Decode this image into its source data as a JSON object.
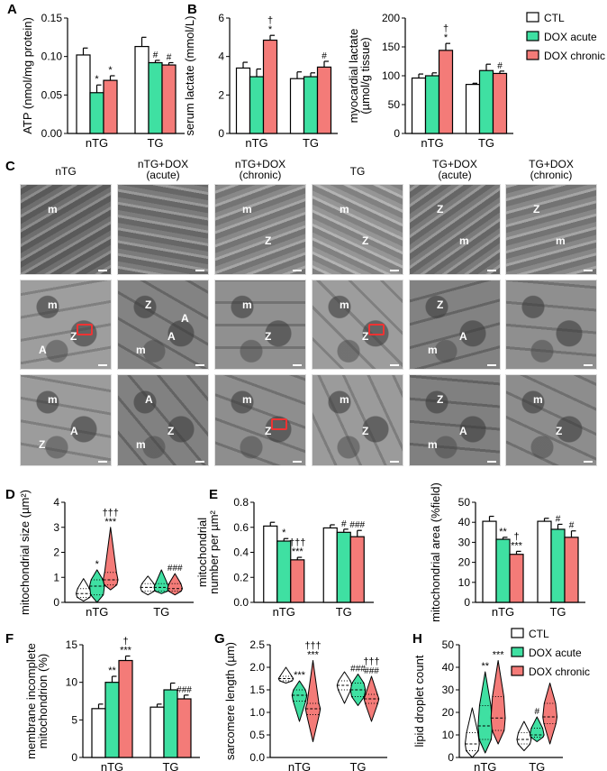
{
  "panel_letters": [
    "A",
    "B",
    "C",
    "D",
    "E",
    "F",
    "G",
    "H"
  ],
  "colors": {
    "CTL": "#ffffff",
    "DOX acute": "#3fe0a2",
    "DOX chronic": "#f47b78"
  },
  "legend": [
    "CTL",
    "DOX acute",
    "DOX chronic"
  ],
  "em": {
    "headers": [
      [
        "nTG",
        ""
      ],
      [
        "nTG+DOX",
        "(acute)"
      ],
      [
        "nTG+DOX",
        "(chronic)"
      ],
      [
        "TG",
        ""
      ],
      [
        "TG+DOX",
        "(acute)"
      ],
      [
        "TG+DOX",
        "(chronic)"
      ]
    ],
    "rows": [
      [
        [
          "m"
        ],
        [],
        [
          "m",
          "Z"
        ],
        [
          "m",
          "Z"
        ],
        [
          "Z",
          "m"
        ],
        [
          "Z",
          "m"
        ]
      ],
      [
        [
          "m",
          "Z",
          "A"
        ],
        [
          "Z",
          "A",
          "m",
          "A"
        ],
        [
          "m",
          "Z"
        ],
        [
          "m",
          "Z"
        ],
        [
          "Z",
          "A",
          "m"
        ],
        []
      ],
      [
        [
          "m",
          "A",
          "Z"
        ],
        [
          "A",
          "Z",
          "m"
        ],
        [
          "m",
          "Z"
        ],
        [
          "m",
          "Z"
        ],
        [
          "Z",
          "A",
          "m"
        ],
        [
          "m",
          "Z"
        ]
      ]
    ]
  },
  "chart_data": [
    {
      "type": "bar",
      "ylabel": [
        "ATP (nmol/mg protein)"
      ],
      "ylim": [
        0,
        0.15
      ],
      "yticks": [
        "0.00",
        "0.05",
        "0.10",
        "0.15"
      ],
      "categories": [
        "nTG",
        "TG"
      ],
      "series": [
        {
          "name": "CTL",
          "values": [
            0.102,
            0.113
          ],
          "errors": [
            0.009,
            0.012
          ]
        },
        {
          "name": "DOX acute",
          "values": [
            0.053,
            0.092
          ],
          "errors": [
            0.01,
            0.003
          ]
        },
        {
          "name": "DOX chronic",
          "values": [
            0.069,
            0.089
          ],
          "errors": [
            0.006,
            0.003
          ]
        }
      ],
      "annotations": [
        {
          "group": 0,
          "series": 1,
          "marks": [
            "*"
          ]
        },
        {
          "group": 0,
          "series": 2,
          "marks": [
            "*"
          ]
        },
        {
          "group": 1,
          "series": 1,
          "marks": [
            "#"
          ]
        },
        {
          "group": 1,
          "series": 2,
          "marks": [
            "#"
          ]
        }
      ]
    },
    {
      "type": "bar",
      "ylabel": [
        "serum lactate (mmol/L)"
      ],
      "ylim": [
        0,
        6
      ],
      "yticks": [
        "0",
        "2",
        "4",
        "6"
      ],
      "categories": [
        "nTG",
        "TG"
      ],
      "series": [
        {
          "name": "CTL",
          "values": [
            3.4,
            2.85
          ],
          "errors": [
            0.3,
            0.35
          ]
        },
        {
          "name": "DOX acute",
          "values": [
            2.95,
            2.95
          ],
          "errors": [
            0.4,
            0.2
          ]
        },
        {
          "name": "DOX chronic",
          "values": [
            4.85,
            3.45
          ],
          "errors": [
            0.25,
            0.3
          ]
        }
      ],
      "annotations": [
        {
          "group": 0,
          "series": 2,
          "marks": [
            "*",
            "†"
          ]
        },
        {
          "group": 1,
          "series": 2,
          "marks": [
            "#"
          ]
        }
      ]
    },
    {
      "type": "bar",
      "ylabel": [
        "myocardial lactate",
        "(µmol/g tissue)"
      ],
      "ylim": [
        0,
        200
      ],
      "yticks": [
        "0",
        "50",
        "100",
        "150",
        "200"
      ],
      "categories": [
        "nTG",
        "TG"
      ],
      "series": [
        {
          "name": "CTL",
          "values": [
            96,
            85
          ],
          "errors": [
            7,
            2
          ]
        },
        {
          "name": "DOX acute",
          "values": [
            100,
            109
          ],
          "errors": [
            5,
            11
          ]
        },
        {
          "name": "DOX chronic",
          "values": [
            144,
            104
          ],
          "errors": [
            12,
            4
          ]
        }
      ],
      "annotations": [
        {
          "group": 0,
          "series": 2,
          "marks": [
            "*",
            "†"
          ]
        },
        {
          "group": 1,
          "series": 2,
          "marks": [
            "#"
          ]
        }
      ]
    },
    {
      "type": "violin",
      "ylabel": [
        "mitochondrial size (µm²)"
      ],
      "ylim": [
        0,
        4
      ],
      "yticks": [
        "0",
        "1",
        "2",
        "3",
        "4"
      ],
      "categories": [
        "nTG",
        "TG"
      ],
      "series": [
        {
          "name": "CTL",
          "median": [
            0.35,
            0.6
          ],
          "q1": [
            0.2,
            0.45
          ],
          "q3": [
            0.55,
            0.75
          ],
          "min": [
            0.05,
            0.3
          ],
          "max": [
            0.95,
            1.05
          ]
        },
        {
          "name": "DOX acute",
          "median": [
            0.65,
            0.6
          ],
          "q1": [
            0.3,
            0.45
          ],
          "q3": [
            0.9,
            0.75
          ],
          "min": [
            0,
            0.35
          ],
          "max": [
            1.3,
            1.3
          ]
        },
        {
          "name": "DOX chronic",
          "median": [
            0.9,
            0.55
          ],
          "q1": [
            0.7,
            0.45
          ],
          "q3": [
            1.2,
            0.75
          ],
          "min": [
            0.5,
            0.3
          ],
          "max": [
            3.0,
            1.15
          ]
        }
      ],
      "annotations": [
        {
          "group": 0,
          "series": 1,
          "marks": [
            "*"
          ]
        },
        {
          "group": 0,
          "series": 2,
          "marks": [
            "***",
            "†††"
          ]
        },
        {
          "group": 1,
          "series": 2,
          "marks": [
            "###"
          ]
        }
      ]
    },
    {
      "type": "bar",
      "ylabel": [
        "mitochondrial",
        "number per µm²"
      ],
      "ylim": [
        0,
        0.8
      ],
      "yticks": [
        "0.0",
        "0.2",
        "0.4",
        "0.6",
        "0.8"
      ],
      "categories": [
        "nTG",
        "TG"
      ],
      "series": [
        {
          "name": "CTL",
          "values": [
            0.61,
            0.595
          ],
          "errors": [
            0.03,
            0.025
          ]
        },
        {
          "name": "DOX acute",
          "values": [
            0.49,
            0.56
          ],
          "errors": [
            0.02,
            0.025
          ]
        },
        {
          "name": "DOX chronic",
          "values": [
            0.34,
            0.525
          ],
          "errors": [
            0.02,
            0.05
          ]
        }
      ],
      "annotations": [
        {
          "group": 0,
          "series": 1,
          "marks": [
            "*"
          ]
        },
        {
          "group": 0,
          "series": 2,
          "marks": [
            "***",
            "†††"
          ]
        },
        {
          "group": 1,
          "series": 1,
          "marks": [
            "#"
          ]
        },
        {
          "group": 1,
          "series": 2,
          "marks": [
            "###"
          ]
        }
      ]
    },
    {
      "type": "bar",
      "ylabel": [
        "mitochondrial area (%field)"
      ],
      "ylim": [
        0,
        50
      ],
      "yticks": [
        "0",
        "10",
        "20",
        "30",
        "40",
        "50"
      ],
      "categories": [
        "nTG",
        "TG"
      ],
      "series": [
        {
          "name": "CTL",
          "values": [
            40.5,
            40.5
          ],
          "errors": [
            2.5,
            1.5
          ]
        },
        {
          "name": "DOX acute",
          "values": [
            31.5,
            36.5
          ],
          "errors": [
            1,
            2.5
          ]
        },
        {
          "name": "DOX chronic",
          "values": [
            24,
            32.5
          ],
          "errors": [
            1.5,
            3.2
          ]
        }
      ],
      "annotations": [
        {
          "group": 0,
          "series": 1,
          "marks": [
            "**"
          ]
        },
        {
          "group": 0,
          "series": 2,
          "marks": [
            "***",
            "†"
          ]
        },
        {
          "group": 1,
          "series": 1,
          "marks": [
            "#"
          ]
        },
        {
          "group": 1,
          "series": 2,
          "marks": [
            "#"
          ]
        }
      ]
    },
    {
      "type": "bar",
      "ylabel": [
        "membrane incomplete",
        "mitochondrion (%)"
      ],
      "ylim": [
        0,
        15
      ],
      "yticks": [
        "0",
        "5",
        "10",
        "15"
      ],
      "categories": [
        "nTG",
        "TG"
      ],
      "series": [
        {
          "name": "CTL",
          "values": [
            6.5,
            6.7
          ],
          "errors": [
            0.6,
            0.4
          ]
        },
        {
          "name": "DOX acute",
          "values": [
            10,
            9
          ],
          "errors": [
            0.8,
            0.9
          ]
        },
        {
          "name": "DOX chronic",
          "values": [
            12.9,
            7.8
          ],
          "errors": [
            0.6,
            0.5
          ]
        }
      ],
      "annotations": [
        {
          "group": 0,
          "series": 1,
          "marks": [
            "**"
          ]
        },
        {
          "group": 0,
          "series": 2,
          "marks": [
            "***",
            "†"
          ]
        },
        {
          "group": 1,
          "series": 2,
          "marks": [
            "###"
          ]
        }
      ]
    },
    {
      "type": "violin",
      "ylabel": [
        "sarcomere length (µm)"
      ],
      "ylim": [
        0,
        2.5
      ],
      "yticks": [
        "0.0",
        "0.5",
        "1.0",
        "1.5",
        "2.0",
        "2.5"
      ],
      "categories": [
        "nTG",
        "TG"
      ],
      "series": [
        {
          "name": "CTL",
          "median": [
            1.75,
            1.6
          ],
          "q1": [
            1.7,
            1.5
          ],
          "q3": [
            1.8,
            1.7
          ],
          "min": [
            1.65,
            1.2
          ],
          "max": [
            2.0,
            1.9
          ]
        },
        {
          "name": "DOX acute",
          "median": [
            1.38,
            1.5
          ],
          "q1": [
            1.25,
            1.35
          ],
          "q3": [
            1.5,
            1.65
          ],
          "min": [
            0.8,
            1.15
          ],
          "max": [
            1.7,
            1.85
          ]
        },
        {
          "name": "DOX chronic",
          "median": [
            1.08,
            1.3
          ],
          "q1": [
            0.95,
            1.2
          ],
          "q3": [
            1.2,
            1.4
          ],
          "min": [
            0.35,
            0.8
          ],
          "max": [
            2.15,
            1.8
          ]
        }
      ],
      "annotations": [
        {
          "group": 0,
          "series": 1,
          "marks": [
            "***"
          ]
        },
        {
          "group": 0,
          "series": 2,
          "marks": [
            "***",
            "†††"
          ]
        },
        {
          "group": 1,
          "series": 1,
          "marks": [
            "###"
          ]
        },
        {
          "group": 1,
          "series": 2,
          "marks": [
            "###",
            "†††"
          ]
        }
      ]
    },
    {
      "type": "violin",
      "ylabel": [
        "lipid droplet count"
      ],
      "ylim": [
        0,
        50
      ],
      "yticks": [
        "0",
        "10",
        "20",
        "30",
        "40",
        "50"
      ],
      "categories": [
        "nTG",
        "TG"
      ],
      "series": [
        {
          "name": "CTL",
          "median": [
            6,
            8
          ],
          "q1": [
            3,
            6
          ],
          "q3": [
            11,
            11
          ],
          "min": [
            0,
            3
          ],
          "max": [
            22,
            16
          ]
        },
        {
          "name": "DOX acute",
          "median": [
            14,
            10
          ],
          "q1": [
            8,
            9
          ],
          "q3": [
            23,
            13
          ],
          "min": [
            2,
            7
          ],
          "max": [
            38,
            18
          ]
        },
        {
          "name": "DOX chronic",
          "median": [
            17.5,
            18
          ],
          "q1": [
            12,
            15
          ],
          "q3": [
            27,
            24
          ],
          "min": [
            6,
            6
          ],
          "max": [
            43,
            33
          ]
        }
      ],
      "annotations": [
        {
          "group": 0,
          "series": 1,
          "marks": [
            "**"
          ]
        },
        {
          "group": 0,
          "series": 2,
          "marks": [
            "***"
          ]
        },
        {
          "group": 1,
          "series": 1,
          "marks": [
            "#"
          ]
        }
      ]
    }
  ]
}
